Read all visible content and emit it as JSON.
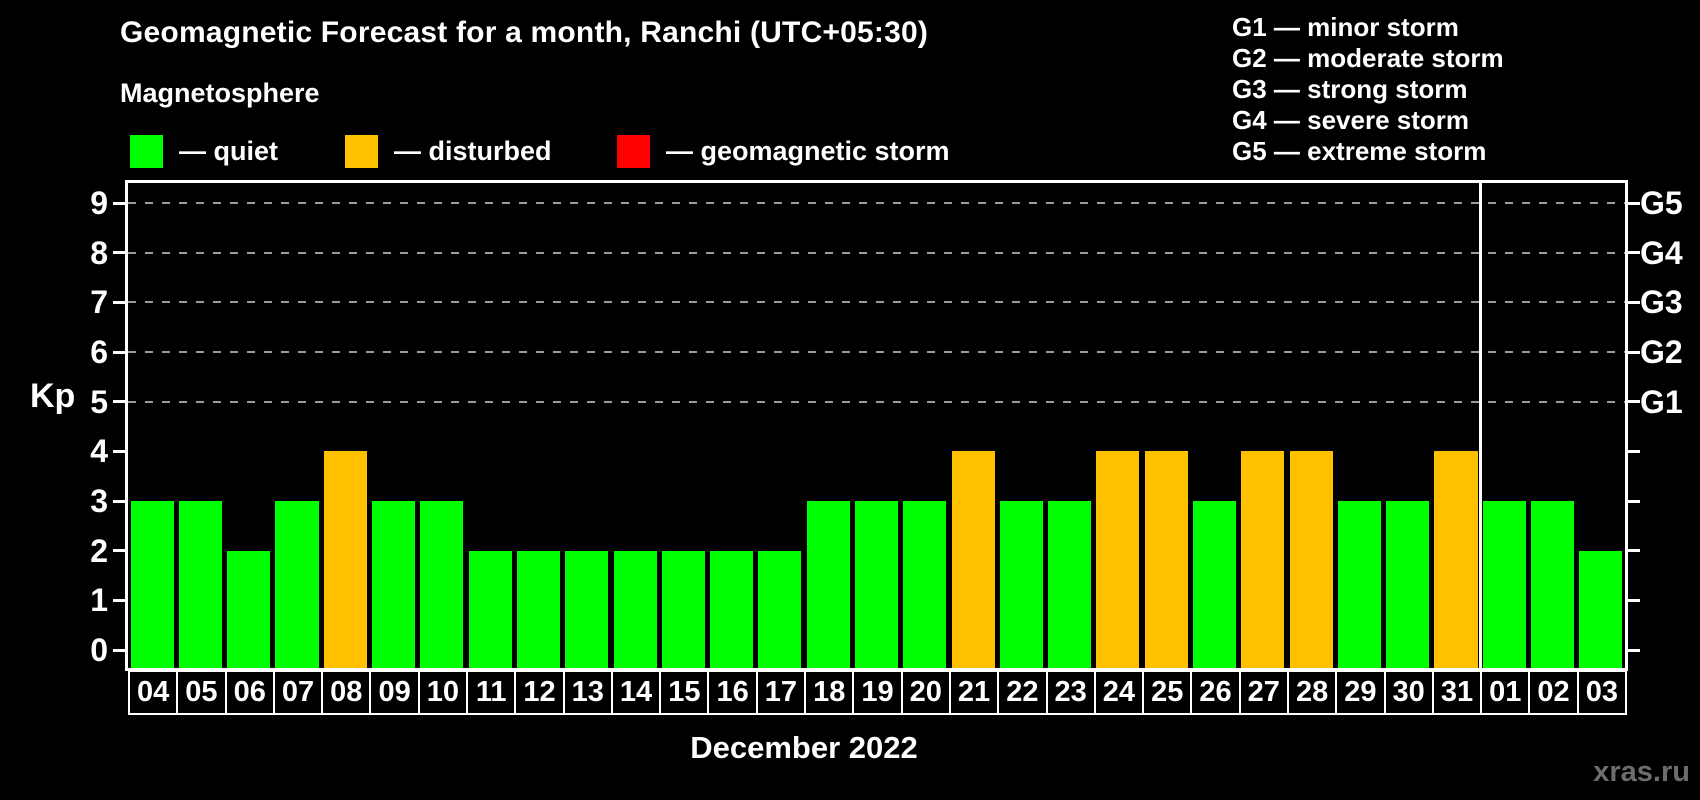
{
  "header": {
    "title": "Geomagnetic Forecast for a month, Ranchi (UTC+05:30)"
  },
  "storm_scale_legend": {
    "lines": [
      "G1 — minor storm",
      "G2 — moderate storm",
      "G3 — strong storm",
      "G4 — severe storm",
      "G5 — extreme storm"
    ]
  },
  "legend": {
    "title": "Magnetosphere",
    "items": [
      {
        "name": "quiet",
        "label": "— quiet",
        "color": "#00ff00"
      },
      {
        "name": "disturbed",
        "label": "— disturbed",
        "color": "#ffc000"
      },
      {
        "name": "storm",
        "label": "— geomagnetic storm",
        "color": "#ff0000"
      }
    ]
  },
  "watermark": "xras.ru",
  "chart_data": {
    "type": "bar",
    "title": "Geomagnetic Forecast for a month, Ranchi (UTC+05:30)",
    "subtitle": "Magnetosphere",
    "xlabel": "December 2022",
    "ylabel": "Kp",
    "ylim": [
      0,
      9
    ],
    "y_ticks": [
      0,
      1,
      2,
      3,
      4,
      5,
      6,
      7,
      8,
      9
    ],
    "gridline_levels": [
      5,
      6,
      7,
      8,
      9
    ],
    "grid": "horizontal dashed lines at Kp 5-9 only",
    "legend_position": "top-left",
    "right_axis": [
      {
        "kp": 5,
        "label": "G1"
      },
      {
        "kp": 6,
        "label": "G2"
      },
      {
        "kp": 7,
        "label": "G3"
      },
      {
        "kp": 8,
        "label": "G4"
      },
      {
        "kp": 9,
        "label": "G5"
      }
    ],
    "categories": [
      "04",
      "05",
      "06",
      "07",
      "08",
      "09",
      "10",
      "11",
      "12",
      "13",
      "14",
      "15",
      "16",
      "17",
      "18",
      "19",
      "20",
      "21",
      "22",
      "23",
      "24",
      "25",
      "26",
      "27",
      "28",
      "29",
      "30",
      "31",
      "01",
      "02",
      "03"
    ],
    "values": [
      3,
      3,
      2,
      3,
      4,
      3,
      3,
      2,
      2,
      2,
      2,
      2,
      2,
      2,
      3,
      3,
      3,
      4,
      3,
      3,
      4,
      4,
      3,
      4,
      4,
      3,
      3,
      4,
      3,
      3,
      2
    ],
    "statuses": [
      "quiet",
      "quiet",
      "quiet",
      "quiet",
      "disturbed",
      "quiet",
      "quiet",
      "quiet",
      "quiet",
      "quiet",
      "quiet",
      "quiet",
      "quiet",
      "quiet",
      "quiet",
      "quiet",
      "quiet",
      "disturbed",
      "quiet",
      "quiet",
      "disturbed",
      "disturbed",
      "quiet",
      "disturbed",
      "disturbed",
      "quiet",
      "quiet",
      "disturbed",
      "quiet",
      "quiet",
      "quiet"
    ],
    "month_separator_after_index": 27,
    "status_colors": {
      "quiet": "#00ff00",
      "disturbed": "#ffc000",
      "storm": "#ff0000"
    }
  }
}
